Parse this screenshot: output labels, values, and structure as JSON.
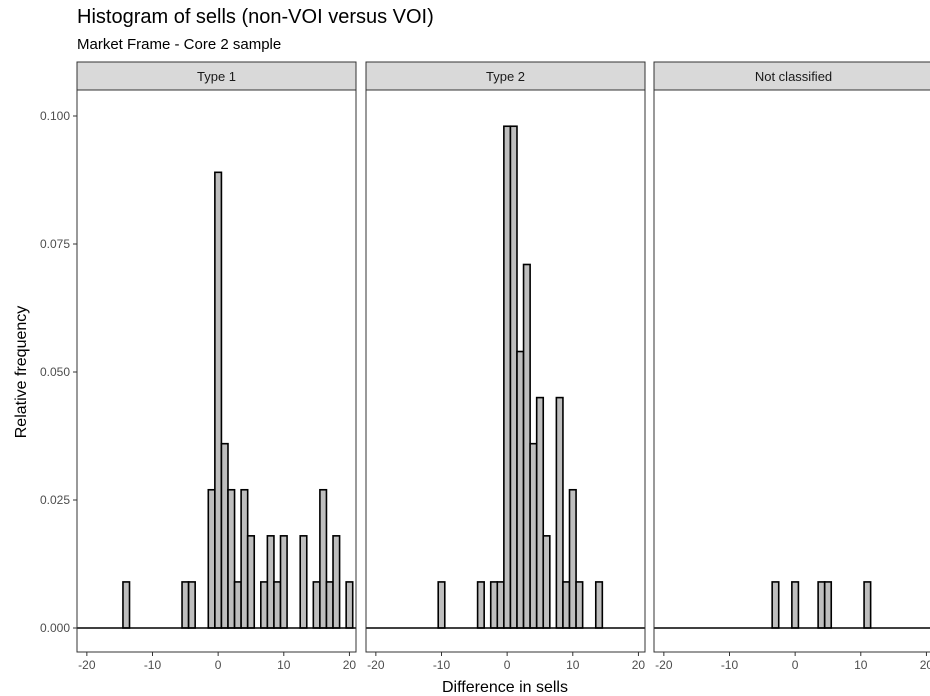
{
  "chart_data": {
    "type": "bar",
    "title": "Histogram of sells (non-VOI versus VOI)",
    "subtitle": "Market Frame - Core 2 sample",
    "xlabel": "Difference in sells",
    "ylabel": "Relative frequency",
    "xlim": [
      -21.5,
      21
    ],
    "ylim": [
      -0.005,
      0.1
    ],
    "x_ticks": [
      -20,
      -10,
      0,
      10,
      20
    ],
    "y_ticks": [
      0.0,
      0.025,
      0.05,
      0.075,
      0.1
    ],
    "y_tick_labels": [
      "0.000",
      "0.025",
      "0.050",
      "0.075",
      "0.100"
    ],
    "bin_width": 1,
    "grid": false,
    "colors": {
      "bar_fill": "#bebebe",
      "bar_stroke": "#000000",
      "strip_fill": "#d9d9d9",
      "panel_border": "#333333"
    },
    "panels": [
      {
        "label": "Type 1",
        "bins": [
          {
            "x": -14,
            "y": 0.009
          },
          {
            "x": -5,
            "y": 0.009
          },
          {
            "x": -4,
            "y": 0.009
          },
          {
            "x": -1,
            "y": 0.027
          },
          {
            "x": 0,
            "y": 0.089
          },
          {
            "x": 1,
            "y": 0.036
          },
          {
            "x": 2,
            "y": 0.027
          },
          {
            "x": 3,
            "y": 0.009
          },
          {
            "x": 4,
            "y": 0.027
          },
          {
            "x": 5,
            "y": 0.018
          },
          {
            "x": 7,
            "y": 0.009
          },
          {
            "x": 8,
            "y": 0.018
          },
          {
            "x": 9,
            "y": 0.009
          },
          {
            "x": 10,
            "y": 0.018
          },
          {
            "x": 13,
            "y": 0.018
          },
          {
            "x": 15,
            "y": 0.009
          },
          {
            "x": 16,
            "y": 0.027
          },
          {
            "x": 17,
            "y": 0.009
          },
          {
            "x": 18,
            "y": 0.018
          },
          {
            "x": 20,
            "y": 0.009
          }
        ]
      },
      {
        "label": "Type 2",
        "bins": [
          {
            "x": -10,
            "y": 0.009
          },
          {
            "x": -4,
            "y": 0.009
          },
          {
            "x": -2,
            "y": 0.009
          },
          {
            "x": -1,
            "y": 0.009
          },
          {
            "x": 0,
            "y": 0.098
          },
          {
            "x": 1,
            "y": 0.098
          },
          {
            "x": 2,
            "y": 0.054
          },
          {
            "x": 3,
            "y": 0.071
          },
          {
            "x": 4,
            "y": 0.036
          },
          {
            "x": 5,
            "y": 0.045
          },
          {
            "x": 6,
            "y": 0.018
          },
          {
            "x": 8,
            "y": 0.045
          },
          {
            "x": 9,
            "y": 0.009
          },
          {
            "x": 10,
            "y": 0.027
          },
          {
            "x": 11,
            "y": 0.009
          },
          {
            "x": 14,
            "y": 0.009
          }
        ]
      },
      {
        "label": "Not classified",
        "bins": [
          {
            "x": -3,
            "y": 0.009
          },
          {
            "x": 0,
            "y": 0.009
          },
          {
            "x": 4,
            "y": 0.009
          },
          {
            "x": 5,
            "y": 0.009
          },
          {
            "x": 11,
            "y": 0.009
          }
        ]
      }
    ]
  }
}
